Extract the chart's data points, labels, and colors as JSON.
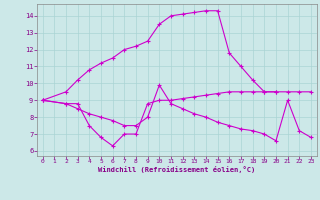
{
  "xlabel": "Windchill (Refroidissement éolien,°C)",
  "background_color": "#cce8e8",
  "line_color": "#cc00cc",
  "xlim": [
    -0.5,
    23.5
  ],
  "ylim": [
    5.7,
    14.7
  ],
  "xticks": [
    0,
    1,
    2,
    3,
    4,
    5,
    6,
    7,
    8,
    9,
    10,
    11,
    12,
    13,
    14,
    15,
    16,
    17,
    18,
    19,
    20,
    21,
    22,
    23
  ],
  "yticks": [
    6,
    7,
    8,
    9,
    10,
    11,
    12,
    13,
    14
  ],
  "line1_x": [
    0,
    2,
    3,
    4,
    5,
    6,
    7,
    8,
    9,
    10,
    11,
    12,
    13,
    14,
    15,
    16,
    17,
    18,
    19,
    20,
    21,
    22,
    23
  ],
  "line1_y": [
    9.0,
    8.8,
    8.8,
    7.5,
    6.8,
    6.3,
    7.0,
    7.0,
    8.8,
    9.0,
    9.0,
    9.1,
    9.2,
    9.3,
    9.4,
    9.5,
    9.5,
    9.5,
    9.5,
    9.5,
    9.5,
    9.5,
    9.5
  ],
  "line2_x": [
    0,
    2,
    3,
    4,
    5,
    6,
    7,
    8,
    9,
    10,
    11,
    12,
    13,
    14,
    15,
    16,
    17,
    18,
    19,
    20,
    21,
    22,
    23
  ],
  "line2_y": [
    9.0,
    8.8,
    8.5,
    8.2,
    8.0,
    7.8,
    7.5,
    7.5,
    8.0,
    9.9,
    8.8,
    8.5,
    8.2,
    8.0,
    7.7,
    7.5,
    7.3,
    7.2,
    7.0,
    6.6,
    9.0,
    7.2,
    6.8
  ],
  "line3_x": [
    0,
    2,
    3,
    4,
    5,
    6,
    7,
    8,
    9,
    10,
    11,
    12,
    13,
    14,
    15,
    16,
    17,
    18,
    19,
    20
  ],
  "line3_y": [
    9.0,
    9.5,
    10.2,
    10.8,
    11.2,
    11.5,
    12.0,
    12.2,
    12.5,
    13.5,
    14.0,
    14.1,
    14.2,
    14.3,
    14.3,
    11.8,
    11.0,
    10.2,
    9.5,
    9.5
  ],
  "grid_color": "#aad4d4",
  "marker": "+"
}
